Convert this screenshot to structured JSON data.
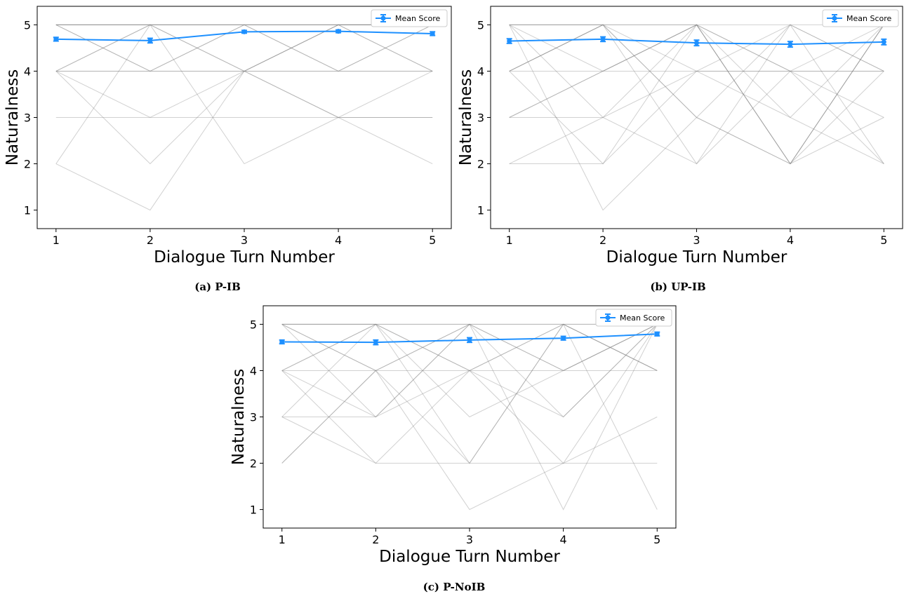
{
  "figure": {
    "captions": [
      "(a) P-IB",
      "(b) UP-IB",
      "(c) P-NoIB"
    ]
  },
  "chart_data": [
    {
      "type": "line",
      "panel": "(a) P-IB",
      "xlabel": "Dialogue Turn Number",
      "ylabel": "Naturalness",
      "x": [
        1,
        2,
        3,
        4,
        5
      ],
      "xlim": [
        0.8,
        5.2
      ],
      "ylim": [
        0.6,
        5.4
      ],
      "xticks": [
        "1",
        "2",
        "3",
        "4",
        "5"
      ],
      "yticks": [
        "1",
        "2",
        "3",
        "4",
        "5"
      ],
      "grid": false,
      "legend": {
        "position": "top-right",
        "entries": [
          "Mean Score"
        ]
      },
      "series": [
        {
          "name": "Mean Score",
          "color": "#1e90ff",
          "values": [
            4.69,
            4.66,
            4.85,
            4.86,
            4.81
          ],
          "errors": [
            0.04,
            0.05,
            0.03,
            0.03,
            0.04
          ]
        }
      ],
      "individual_ratings": [
        [
          5,
          4,
          5,
          4,
          5
        ],
        [
          5,
          4,
          5,
          4,
          5
        ],
        [
          5,
          5,
          4,
          5,
          4
        ],
        [
          5,
          5,
          4,
          5,
          4
        ],
        [
          4,
          5,
          5,
          5,
          5
        ],
        [
          4,
          5,
          5,
          5,
          5
        ],
        [
          5,
          5,
          5,
          5,
          5
        ],
        [
          5,
          5,
          5,
          5,
          5
        ],
        [
          4,
          4,
          4,
          4,
          4
        ],
        [
          4,
          4,
          4,
          4,
          4
        ],
        [
          4,
          3,
          4,
          3,
          2
        ],
        [
          4,
          2,
          4,
          3,
          3
        ],
        [
          2,
          1,
          4,
          5,
          5
        ],
        [
          2,
          5,
          2,
          3,
          4
        ],
        [
          3,
          3,
          3,
          3,
          3
        ]
      ]
    },
    {
      "type": "line",
      "panel": "(b) UP-IB",
      "xlabel": "Dialogue Turn Number",
      "ylabel": "Naturalness",
      "x": [
        1,
        2,
        3,
        4,
        5
      ],
      "xlim": [
        0.8,
        5.2
      ],
      "ylim": [
        0.6,
        5.4
      ],
      "xticks": [
        "1",
        "2",
        "3",
        "4",
        "5"
      ],
      "yticks": [
        "1",
        "2",
        "3",
        "4",
        "5"
      ],
      "grid": false,
      "legend": {
        "position": "top-right",
        "entries": [
          "Mean Score"
        ]
      },
      "series": [
        {
          "name": "Mean Score",
          "color": "#1e90ff",
          "values": [
            4.65,
            4.69,
            4.61,
            4.58,
            4.63
          ],
          "errors": [
            0.05,
            0.05,
            0.06,
            0.06,
            0.06
          ]
        }
      ],
      "individual_ratings": [
        [
          5,
          4,
          5,
          4,
          5
        ],
        [
          5,
          5,
          4,
          5,
          4
        ],
        [
          4,
          5,
          3,
          5,
          4
        ],
        [
          3,
          4,
          5,
          2,
          5
        ],
        [
          3,
          3,
          4,
          4,
          3
        ],
        [
          5,
          5,
          5,
          4,
          4
        ],
        [
          4,
          5,
          2,
          4,
          2
        ],
        [
          2,
          3,
          5,
          2,
          3
        ],
        [
          5,
          1,
          3,
          2,
          5
        ],
        [
          5,
          5,
          5,
          5,
          5
        ],
        [
          4,
          4,
          4,
          4,
          4
        ],
        [
          4,
          2,
          5,
          3,
          2
        ],
        [
          2,
          2,
          4,
          3,
          5
        ],
        [
          3,
          4,
          5,
          2,
          4
        ],
        [
          5,
          3,
          2,
          5,
          2
        ],
        [
          4,
          5,
          3,
          2,
          5
        ]
      ]
    },
    {
      "type": "line",
      "panel": "(c) P-NoIB",
      "xlabel": "Dialogue Turn Number",
      "ylabel": "Naturalness",
      "x": [
        1,
        2,
        3,
        4,
        5
      ],
      "xlim": [
        0.8,
        5.2
      ],
      "ylim": [
        0.6,
        5.4
      ],
      "xticks": [
        "1",
        "2",
        "3",
        "4",
        "5"
      ],
      "yticks": [
        "1",
        "2",
        "3",
        "4",
        "5"
      ],
      "grid": false,
      "legend": {
        "position": "top-right",
        "entries": [
          "Mean Score"
        ]
      },
      "series": [
        {
          "name": "Mean Score",
          "color": "#1e90ff",
          "values": [
            4.62,
            4.61,
            4.66,
            4.7,
            4.79
          ],
          "errors": [
            0.04,
            0.05,
            0.05,
            0.04,
            0.04
          ]
        }
      ],
      "individual_ratings": [
        [
          5,
          5,
          5,
          5,
          5
        ],
        [
          4,
          4,
          4,
          4,
          4
        ],
        [
          5,
          4,
          5,
          4,
          5
        ],
        [
          5,
          5,
          4,
          5,
          4
        ],
        [
          4,
          5,
          5,
          5,
          5
        ],
        [
          5,
          3,
          5,
          4,
          5
        ],
        [
          5,
          4,
          2,
          5,
          4
        ],
        [
          4,
          3,
          4,
          3,
          5
        ],
        [
          3,
          5,
          3,
          4,
          5
        ],
        [
          2,
          4,
          1,
          2,
          3
        ],
        [
          3,
          2,
          2,
          2,
          2
        ],
        [
          4,
          2,
          4,
          5,
          1
        ],
        [
          3,
          3,
          5,
          3,
          5
        ],
        [
          5,
          5,
          4,
          2,
          5
        ],
        [
          4,
          5,
          2,
          5,
          4
        ],
        [
          2,
          4,
          5,
          1,
          5
        ]
      ]
    }
  ]
}
